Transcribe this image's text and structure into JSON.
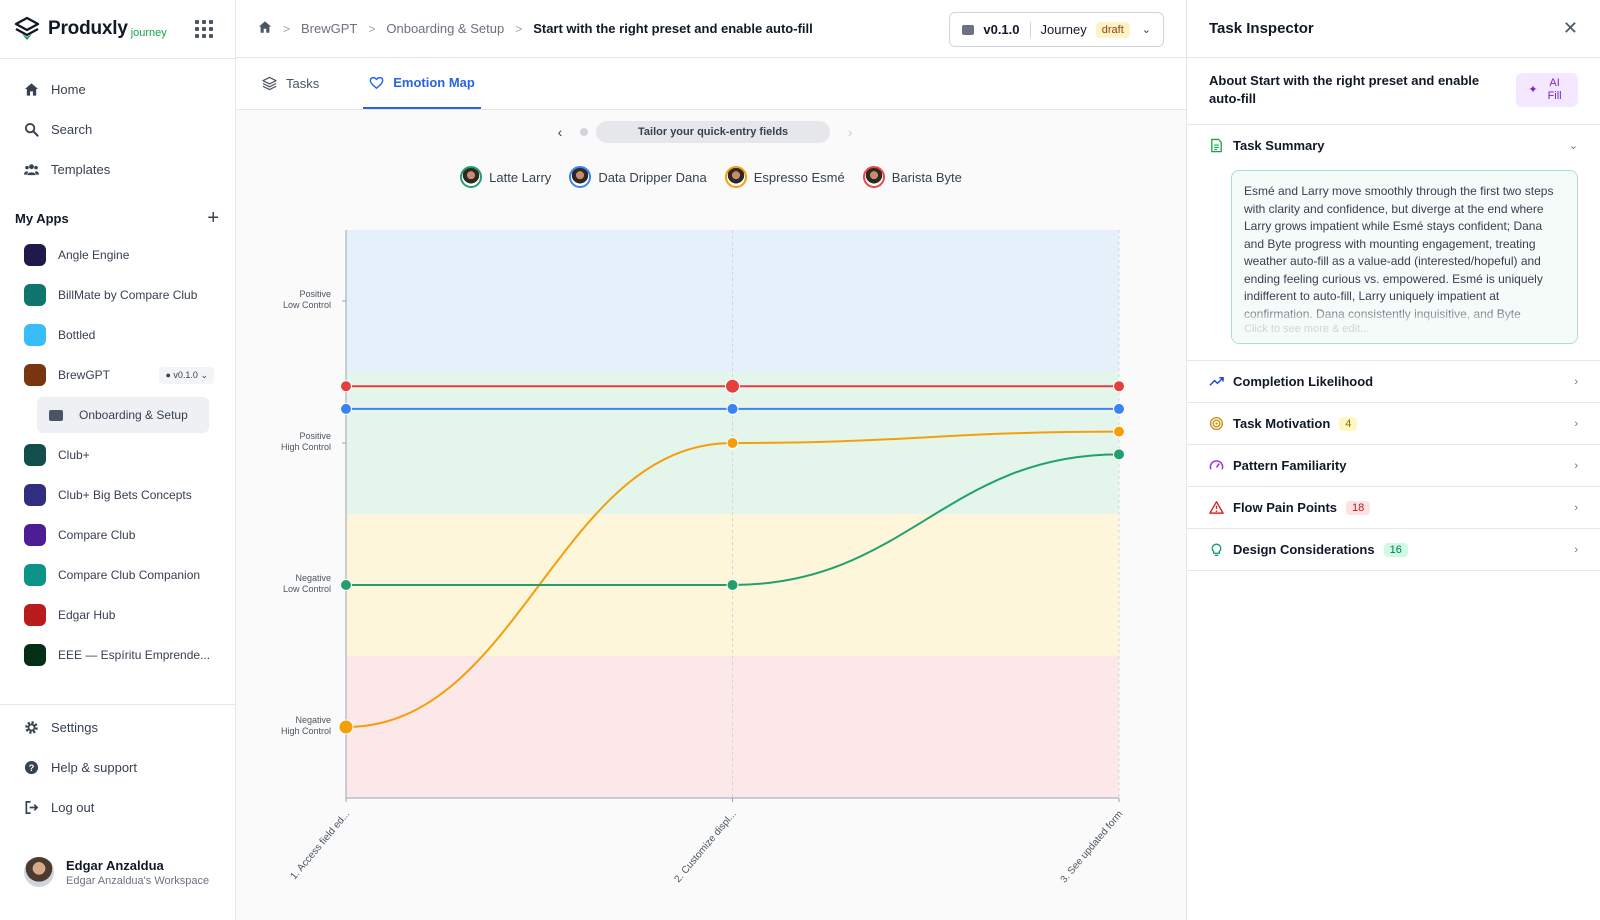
{
  "brand": {
    "name": "Produxly",
    "sub": "journey"
  },
  "nav": [
    {
      "label": "Home",
      "icon": "home-icon"
    },
    {
      "label": "Search",
      "icon": "search-icon"
    },
    {
      "label": "Templates",
      "icon": "users-icon"
    }
  ],
  "my_apps": {
    "title": "My Apps",
    "items": [
      {
        "label": "Angle Engine",
        "color": "#1e1b4b"
      },
      {
        "label": "BillMate by Compare Club",
        "color": "#0f766e"
      },
      {
        "label": "Bottled",
        "color": "#38bdf8"
      },
      {
        "label": "BrewGPT",
        "color": "#78350f",
        "version": "v0.1.0"
      },
      {
        "label": "Onboarding & Setup",
        "sub": true
      },
      {
        "label": "Club+",
        "color": "#134e4a"
      },
      {
        "label": "Club+ Big Bets Concepts",
        "color": "#312e81"
      },
      {
        "label": "Compare Club",
        "color": "#4c1d95"
      },
      {
        "label": "Compare Club Companion",
        "color": "#0d9488"
      },
      {
        "label": "Edgar Hub",
        "color": "#b91c1c"
      },
      {
        "label": "EEE — Espíritu Emprende...",
        "color": "#052e16"
      }
    ]
  },
  "bottom_nav": [
    {
      "label": "Settings",
      "icon": "gear-icon"
    },
    {
      "label": "Help & support",
      "icon": "help-icon"
    },
    {
      "label": "Log out",
      "icon": "logout-icon"
    }
  ],
  "user": {
    "name": "Edgar Anzaldua",
    "workspace": "Edgar Anzaldua's Workspace"
  },
  "breadcrumb": [
    "BrewGPT",
    "Onboarding & Setup",
    "Start with the right preset and enable auto-fill"
  ],
  "version_picker": {
    "version": "v0.1.0",
    "label": "Journey",
    "status": "draft"
  },
  "tabs": [
    {
      "label": "Tasks",
      "active": false
    },
    {
      "label": "Emotion Map",
      "active": true
    }
  ],
  "stepper": {
    "label": "Tailor your quick-entry fields"
  },
  "personas": [
    {
      "name": "Latte Larry",
      "color": "#22a06b"
    },
    {
      "name": "Data Dripper Dana",
      "color": "#3b82f6"
    },
    {
      "name": "Espresso Esmé",
      "color": "#f59e0b"
    },
    {
      "name": "Barista Byte",
      "color": "#ef4444"
    }
  ],
  "chart_data": {
    "type": "line",
    "y_levels": [
      {
        "line1": "Positive",
        "line2": "Low Control",
        "band": "#e6f0fb"
      },
      {
        "line1": "Positive",
        "line2": "High Control",
        "band": "#e4f6ec"
      },
      {
        "line1": "Negative",
        "line2": "Low Control",
        "band": "#fdf6da"
      },
      {
        "line1": "Negative",
        "line2": "High Control",
        "band": "#fce8e8"
      }
    ],
    "categories": [
      "1. Access field ed...",
      "2. Customize displ...",
      "3. See updated form"
    ],
    "series": [
      {
        "name": "Barista Byte",
        "color": "#e53e3e",
        "values": [
          0.6,
          0.6,
          0.6
        ]
      },
      {
        "name": "Data Dripper Dana",
        "color": "#3b82f6",
        "values": [
          0.76,
          0.76,
          0.76
        ]
      },
      {
        "name": "Espresso Esmé",
        "color": "#f59e0b",
        "values": [
          3.0,
          1.0,
          0.92
        ]
      },
      {
        "name": "Latte Larry",
        "color": "#22a06b",
        "values": [
          2.0,
          2.0,
          1.08
        ]
      }
    ]
  },
  "inspector": {
    "title": "Task Inspector",
    "about": "About Start with the right preset and enable auto-fill",
    "ai_fill": "AI Fill",
    "summary_title": "Task Summary",
    "summary_text": "Esmé and Larry move smoothly through the first two steps with clarity and confidence, but diverge at the end where Larry grows impatient while Esmé stays confident; Dana and Byte progress with mounting engagement, treating weather auto-fill as a value-add (interested/hopeful) and ending feeling curious vs. empowered. Esmé is uniquely indifferent to auto-fill, Larry uniquely impatient at confirmation. Dana consistently inquisitive, and Byte",
    "summary_hint": "Click to see more & edit...",
    "sections": [
      {
        "label": "Completion Likelihood",
        "icon": "trend-icon",
        "color": "#1d4ed8"
      },
      {
        "label": "Task Motivation",
        "icon": "target-icon",
        "color": "#ca8a04",
        "badge": "4",
        "badge_bg": "#fef9c3",
        "badge_fg": "#a16207"
      },
      {
        "label": "Pattern Familiarity",
        "icon": "gauge-icon",
        "color": "#9333ea"
      },
      {
        "label": "Flow Pain Points",
        "icon": "warning-icon",
        "color": "#dc2626",
        "badge": "18",
        "badge_bg": "#fee2e2",
        "badge_fg": "#b91c1c"
      },
      {
        "label": "Design Considerations",
        "icon": "bulb-icon",
        "color": "#0f9d6b",
        "badge": "16",
        "badge_bg": "#d1fae5",
        "badge_fg": "#047857"
      }
    ]
  }
}
